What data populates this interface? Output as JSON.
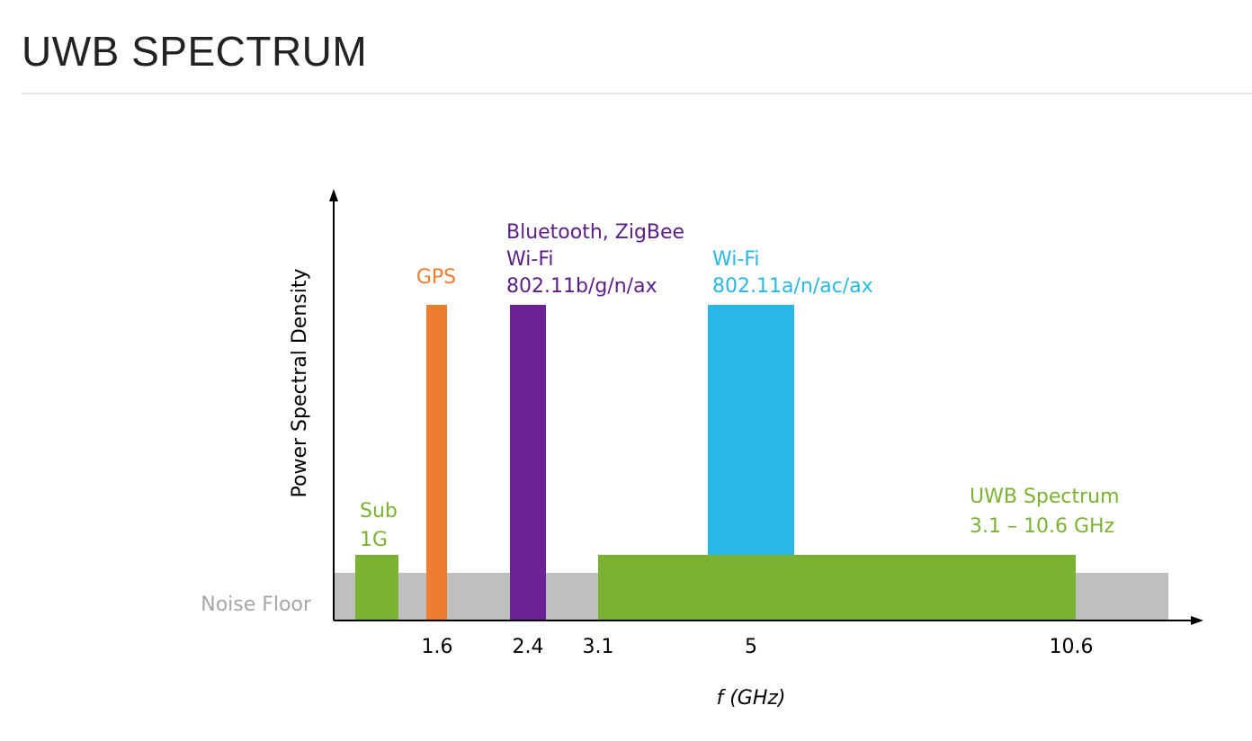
{
  "slide": {
    "title": "UWB SPECTRUM"
  },
  "chart_data": {
    "type": "bar",
    "xlabel": "f (GHz)",
    "ylabel": "Power Spectral Density",
    "x_ticks": [
      "1.6",
      "2.4",
      "3.1",
      "5",
      "10.6"
    ],
    "noise_floor_label": "Noise Floor",
    "bands": [
      {
        "id": "sub1g",
        "label_lines": [
          "Sub",
          "1G"
        ],
        "color": "#7cb233",
        "level": "low"
      },
      {
        "id": "gps",
        "label_lines": [
          "GPS"
        ],
        "color": "#ed7d31",
        "level": "high"
      },
      {
        "id": "bt",
        "label_lines": [
          "Bluetooth, ZigBee",
          "Wi-Fi",
          "802.11b/g/n/ax"
        ],
        "color": "#6a2296",
        "level": "high"
      },
      {
        "id": "wifi5",
        "label_lines": [
          "Wi-Fi",
          "802.11a/n/ac/ax"
        ],
        "color": "#29b8e5",
        "level": "high"
      },
      {
        "id": "uwb",
        "label_lines": [
          "UWB Spectrum",
          "3.1 – 10.6 GHz"
        ],
        "color": "#7cb233",
        "level": "low"
      }
    ],
    "colors": {
      "noise_floor": "#bfbfbf",
      "noise_label": "#a6a6a6",
      "axis": "#000000"
    }
  }
}
